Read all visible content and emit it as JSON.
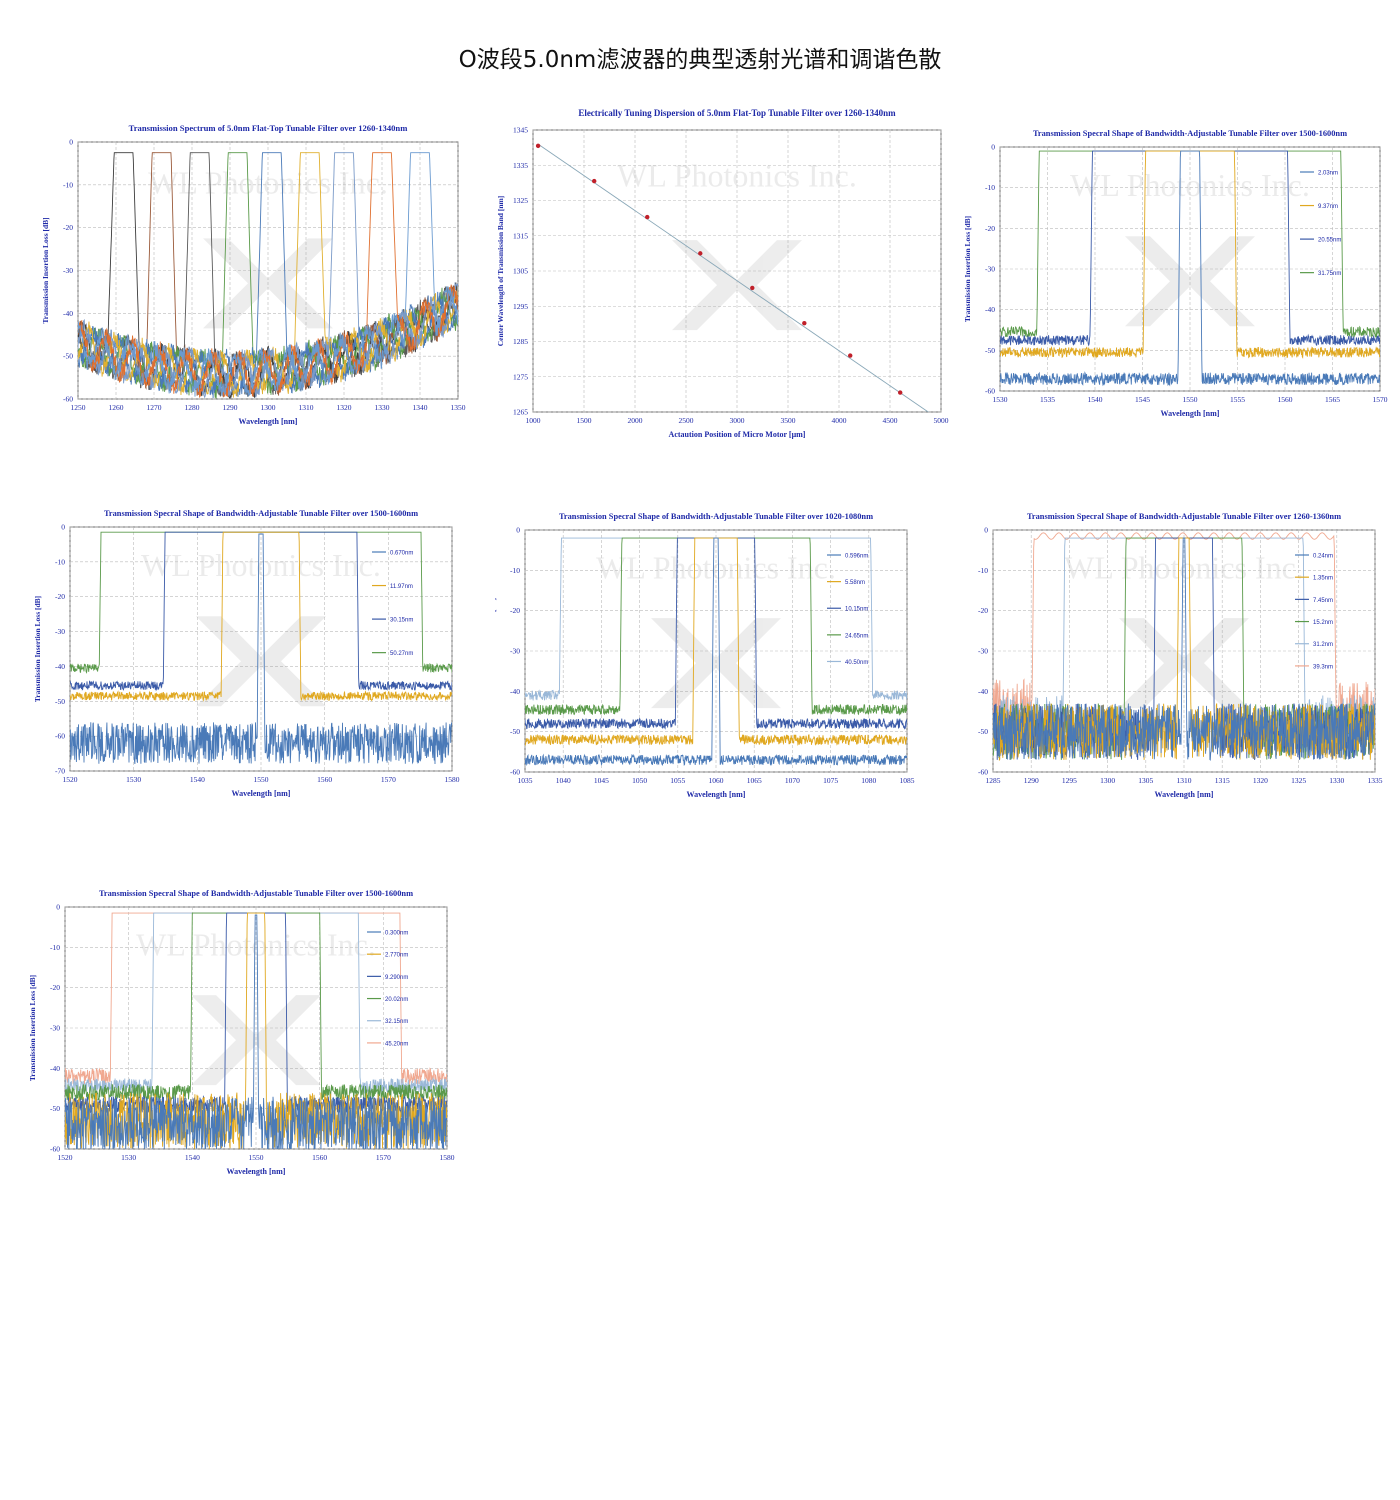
{
  "page": {
    "title": "O波段5.0nm滤波器的典型透射光谱和调谐色散"
  },
  "watermark": "WL Photonics Inc.",
  "chart_data": [
    {
      "type": "line",
      "title": "Transmission Spectrum of 5.0nm Flat-Top Tunable Filter over 1260-1340nm",
      "xlabel": "Wavelength [nm]",
      "ylabel": "Transmission Insertion Loss [dB]",
      "xlim": [
        1250,
        1350
      ],
      "ylim": [
        -60,
        0
      ],
      "xticks": [
        1250,
        1260,
        1270,
        1280,
        1290,
        1300,
        1310,
        1320,
        1330,
        1340,
        1350
      ],
      "yticks": [
        0,
        -10,
        -20,
        -30,
        -40,
        -50,
        -60
      ],
      "grid": true,
      "legend": "none",
      "series": [
        {
          "center": 1262,
          "width": 5.0,
          "peak": -2.5,
          "floor": -52,
          "color": "#3c3c3c"
        },
        {
          "center": 1272,
          "width": 5.0,
          "peak": -2.5,
          "floor": -52,
          "color": "#9a5a3a"
        },
        {
          "center": 1282,
          "width": 5.0,
          "peak": -2.5,
          "floor": -52,
          "color": "#5a5a5a"
        },
        {
          "center": 1292,
          "width": 5.0,
          "peak": -2.5,
          "floor": -52,
          "color": "#5a9a4a"
        },
        {
          "center": 1301,
          "width": 5.0,
          "peak": -2.5,
          "floor": -52,
          "color": "#4a7ab8"
        },
        {
          "center": 1311,
          "width": 5.0,
          "peak": -2.5,
          "floor": -52,
          "color": "#e0b030"
        },
        {
          "center": 1320,
          "width": 5.0,
          "peak": -2.5,
          "floor": -52,
          "color": "#7a9ac8"
        },
        {
          "center": 1330,
          "width": 5.0,
          "peak": -2.5,
          "floor": -52,
          "color": "#e07030"
        },
        {
          "center": 1340,
          "width": 5.0,
          "peak": -2.5,
          "floor": -52,
          "color": "#6a9ad0"
        }
      ]
    },
    {
      "type": "scatter",
      "title": "Electrically Tuning Dispersion of 5.0nm Flat-Top Tunable Filter over 1260-1340nm",
      "xlabel": "Actaution Position of Micro Motor [μm]",
      "ylabel": "Center Wavelength of Transmission Band [nm]",
      "xlim": [
        1000,
        5000
      ],
      "ylim": [
        1265,
        1345
      ],
      "xticks": [
        1000,
        1500,
        2000,
        2500,
        3000,
        3500,
        4000,
        4500,
        5000
      ],
      "yticks": [
        1265,
        1275,
        1285,
        1295,
        1305,
        1315,
        1325,
        1335,
        1345
      ],
      "grid": true,
      "legend": "none",
      "x": [
        1050,
        1600,
        2120,
        2640,
        3150,
        3660,
        4110,
        4600
      ],
      "y": [
        1340.5,
        1330.5,
        1320.3,
        1310.0,
        1300.2,
        1290.2,
        1281.0,
        1270.5
      ],
      "fit_line": [
        [
          1050,
          1341
        ],
        [
          4900,
          1264.5
        ]
      ],
      "marker_color": "#c0202a",
      "line_color": "#8aa8b8"
    },
    {
      "type": "line",
      "title": "Transmission Specral Shape of Bandwidth-Adjustable Tunable Filter over 1500-1600nm",
      "xlabel": "Wavelength [nm]",
      "ylabel": "Transmission Insertion Loss [dB]",
      "xlim": [
        1530,
        1570
      ],
      "ylim": [
        -60,
        0
      ],
      "xticks": [
        1530,
        1535,
        1540,
        1545,
        1550,
        1555,
        1560,
        1565,
        1570
      ],
      "yticks": [
        0,
        -10,
        -20,
        -30,
        -40,
        -50,
        -60
      ],
      "grid": true,
      "legend": "right",
      "series": [
        {
          "name": "2.03nm",
          "center": 1550,
          "width": 2.03,
          "peak": -1,
          "floor": -57,
          "color": "#4a7ab8"
        },
        {
          "name": "9.37nm",
          "center": 1550,
          "width": 9.37,
          "peak": -1,
          "floor": -50.5,
          "color": "#e0a820"
        },
        {
          "name": "20.55nm",
          "center": 1550,
          "width": 20.55,
          "peak": -1,
          "floor": -47.5,
          "color": "#3a5aa8"
        },
        {
          "name": "31.75nm",
          "center": 1550,
          "width": 31.75,
          "peak": -1,
          "floor": -45.5,
          "color": "#5a9a4a"
        }
      ]
    },
    {
      "type": "line",
      "title": "Transmission Specral Shape of Bandwidth-Adjustable Tunable Filter over 1500-1600nm",
      "xlabel": "Wavelength [nm]",
      "ylabel": "Transmission Insertion Loss [dB]",
      "xlim": [
        1520,
        1580
      ],
      "ylim": [
        -70,
        0
      ],
      "xticks": [
        1520,
        1530,
        1540,
        1550,
        1560,
        1570,
        1580
      ],
      "yticks": [
        0,
        -10,
        -20,
        -30,
        -40,
        -50,
        -60,
        -70
      ],
      "grid": true,
      "legend": "right",
      "series": [
        {
          "name": "0.670nm",
          "center": 1550,
          "width": 0.67,
          "peak": -2,
          "floor": -62,
          "color": "#4a7ab8"
        },
        {
          "name": "11.97nm",
          "center": 1550,
          "width": 11.97,
          "peak": -1.5,
          "floor": -48.5,
          "color": "#e0a820"
        },
        {
          "name": "30.15nm",
          "center": 1550,
          "width": 30.15,
          "peak": -1.5,
          "floor": -45.5,
          "color": "#3a5aa8"
        },
        {
          "name": "50.27nm",
          "center": 1550,
          "width": 50.27,
          "peak": -1.5,
          "floor": -40.5,
          "color": "#5a9a4a"
        }
      ]
    },
    {
      "type": "line",
      "title": "Transmission Specral Shape of Bandwidth-Adjustable Tunable Filter over 1020-1080nm",
      "xlabel": "Wavelength [nm]",
      "ylabel": "Transmission Insertion Loss [dB]",
      "xlim": [
        1035,
        1085
      ],
      "ylim": [
        -60,
        0
      ],
      "xticks": [
        1035,
        1040,
        1045,
        1050,
        1055,
        1060,
        1065,
        1070,
        1075,
        1080,
        1085
      ],
      "yticks": [
        0,
        -10,
        -20,
        -30,
        -40,
        -50,
        -60
      ],
      "grid": true,
      "legend": "right",
      "series": [
        {
          "name": "0.596nm",
          "center": 1060,
          "width": 0.596,
          "peak": -2,
          "floor": -57,
          "color": "#4a7ab8"
        },
        {
          "name": "5.58nm",
          "center": 1060,
          "width": 5.58,
          "peak": -2,
          "floor": -52,
          "color": "#e0a820"
        },
        {
          "name": "10.15nm",
          "center": 1060,
          "width": 10.15,
          "peak": -2,
          "floor": -48,
          "color": "#3a5aa8"
        },
        {
          "name": "24.65nm",
          "center": 1060,
          "width": 24.65,
          "peak": -2,
          "floor": -44.5,
          "color": "#5a9a4a"
        },
        {
          "name": "40.50nm",
          "center": 1060,
          "width": 40.5,
          "peak": -2,
          "floor": -41,
          "color": "#9ab8d8"
        }
      ]
    },
    {
      "type": "line",
      "title": "Transmission Specral Shape of Bandwidth-Adjustable Tunable Filter over 1260-1360nm",
      "xlabel": "Wavelength [nm]",
      "ylabel": "Transmission Insertion Loss [dB]",
      "xlim": [
        1285,
        1335
      ],
      "ylim": [
        -60,
        0
      ],
      "xticks": [
        1285,
        1290,
        1295,
        1300,
        1305,
        1310,
        1315,
        1320,
        1325,
        1330,
        1335
      ],
      "yticks": [
        0,
        -10,
        -20,
        -30,
        -40,
        -50,
        -60
      ],
      "grid": true,
      "legend": "right",
      "series": [
        {
          "name": "0.24nm",
          "center": 1310,
          "width": 0.24,
          "peak": -2,
          "floor": -50,
          "color": "#4a7ab8"
        },
        {
          "name": "1.35nm",
          "center": 1310,
          "width": 1.35,
          "peak": -2,
          "floor": -50,
          "color": "#e0a820"
        },
        {
          "name": "7.45nm",
          "center": 1310,
          "width": 7.45,
          "peak": -2,
          "floor": -50,
          "color": "#3a5aa8"
        },
        {
          "name": "15.2nm",
          "center": 1310,
          "width": 15.2,
          "peak": -2,
          "floor": -50,
          "color": "#5a9a4a"
        },
        {
          "name": "31.2nm",
          "center": 1310,
          "width": 31.2,
          "peak": -2,
          "floor": -48,
          "color": "#9ab8d8"
        },
        {
          "name": "39.3nm",
          "center": 1310,
          "width": 39.3,
          "peak": -1.5,
          "floor": -44,
          "color": "#f0a890"
        }
      ]
    },
    {
      "type": "line",
      "title": "Transmission Specral Shape of Bandwidth-Adjustable Tunable Filter over 1500-1600nm",
      "xlabel": "Wavelength [nm]",
      "ylabel": "Transmission Insertion Loss [dB]",
      "xlim": [
        1520,
        1580
      ],
      "ylim": [
        -60,
        0
      ],
      "xticks": [
        1520,
        1530,
        1540,
        1550,
        1560,
        1570,
        1580
      ],
      "yticks": [
        0,
        -10,
        -20,
        -30,
        -40,
        -50,
        -60
      ],
      "grid": true,
      "legend": "right",
      "series": [
        {
          "name": "0.300nm",
          "center": 1550,
          "width": 0.3,
          "peak": -2,
          "floor": -54,
          "color": "#4a7ab8"
        },
        {
          "name": "2.770nm",
          "center": 1550,
          "width": 2.77,
          "peak": -1.5,
          "floor": -53,
          "color": "#e0a820"
        },
        {
          "name": "9.290nm",
          "center": 1550,
          "width": 9.29,
          "peak": -1.5,
          "floor": -49,
          "color": "#3a5aa8"
        },
        {
          "name": "20.02nm",
          "center": 1550,
          "width": 20.02,
          "peak": -1.5,
          "floor": -46,
          "color": "#5a9a4a"
        },
        {
          "name": "32.15nm",
          "center": 1550,
          "width": 32.15,
          "peak": -1.5,
          "floor": -44.5,
          "color": "#9ab8d8"
        },
        {
          "name": "45.20nm",
          "center": 1550,
          "width": 45.2,
          "peak": -1.5,
          "floor": -42,
          "color": "#f0a890"
        }
      ]
    }
  ]
}
